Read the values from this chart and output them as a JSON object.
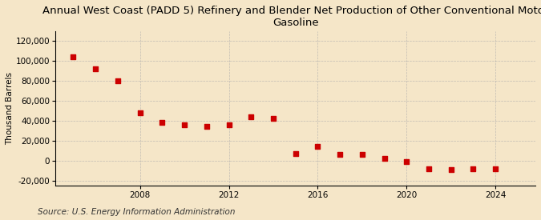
{
  "title": "Annual West Coast (PADD 5) Refinery and Blender Net Production of Other Conventional Motor\nGasoline",
  "ylabel": "Thousand Barrels",
  "source": "Source: U.S. Energy Information Administration",
  "background_color": "#f5e6c8",
  "plot_bg_color": "#f5e6c8",
  "marker_color": "#cc0000",
  "years": [
    2005,
    2006,
    2007,
    2008,
    2009,
    2010,
    2011,
    2012,
    2013,
    2014,
    2015,
    2016,
    2017,
    2018,
    2019,
    2020,
    2021,
    2022,
    2023,
    2024
  ],
  "values": [
    104000,
    92000,
    80000,
    48000,
    38000,
    36000,
    34000,
    36000,
    44000,
    42000,
    7000,
    14000,
    6000,
    6000,
    2000,
    -1000,
    -8000,
    -9000,
    -8000,
    -8000
  ],
  "ylim": [
    -25000,
    130000
  ],
  "yticks": [
    -20000,
    0,
    20000,
    40000,
    60000,
    80000,
    100000,
    120000
  ],
  "xticks": [
    2008,
    2012,
    2016,
    2020,
    2024
  ],
  "xlim": [
    2004.2,
    2025.8
  ],
  "grid_color": "#aaaaaa",
  "title_fontsize": 9.5,
  "label_fontsize": 7.5,
  "tick_fontsize": 7.5,
  "source_fontsize": 7.5
}
